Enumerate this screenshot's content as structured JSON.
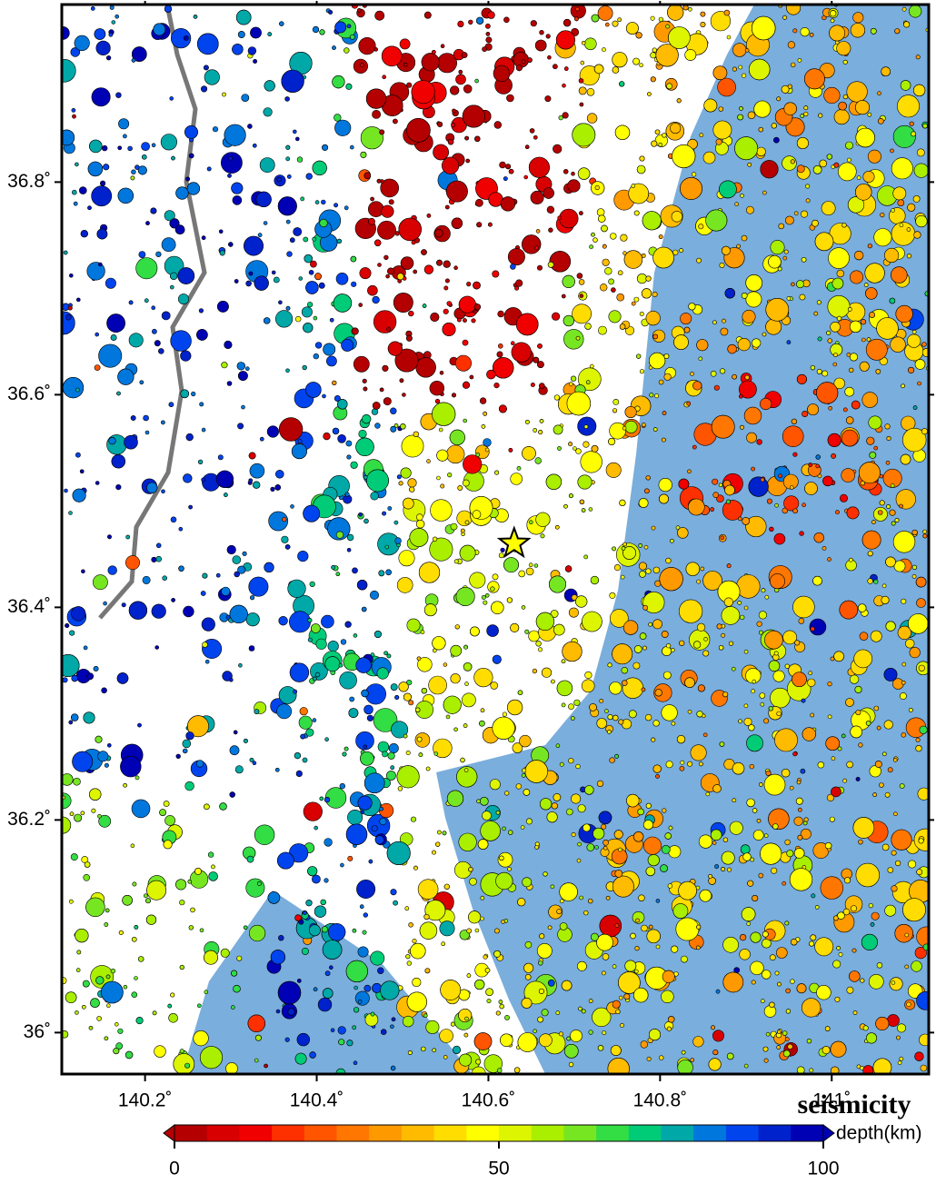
{
  "map": {
    "type": "map",
    "title": "seismicity",
    "xlim": [
      140.103,
      141.113
    ],
    "ylim": [
      35.961,
      36.967
    ],
    "xticks": [
      {
        "value": 140.2,
        "label": "140.2˚"
      },
      {
        "value": 140.4,
        "label": "140.4˚"
      },
      {
        "value": 140.6,
        "label": "140.6˚"
      },
      {
        "value": 140.8,
        "label": "140.8˚"
      },
      {
        "value": 141.0,
        "label": "141˚"
      }
    ],
    "yticks": [
      {
        "value": 36.0,
        "label": "36˚"
      },
      {
        "value": 36.2,
        "label": "36.2˚"
      },
      {
        "value": 36.4,
        "label": "36.4˚"
      },
      {
        "value": 36.6,
        "label": "36.6˚"
      },
      {
        "value": 36.8,
        "label": "36.8˚"
      }
    ],
    "epicenter": {
      "lon": 140.63,
      "lat": 36.46
    },
    "colorbar": {
      "label": "depth(km)",
      "lim": [
        0,
        100
      ],
      "ticks": [
        0,
        50,
        100
      ],
      "colors": [
        "#b40000",
        "#d80000",
        "#f00000",
        "#ff3000",
        "#ff5500",
        "#ff7700",
        "#ff9900",
        "#ffbb00",
        "#ffdd00",
        "#ffff00",
        "#ddf500",
        "#aaee00",
        "#77e622",
        "#33dd44",
        "#00cc77",
        "#00a8a8",
        "#0077dd",
        "#0044ee",
        "#0022cc",
        "#0000b4"
      ]
    }
  }
}
